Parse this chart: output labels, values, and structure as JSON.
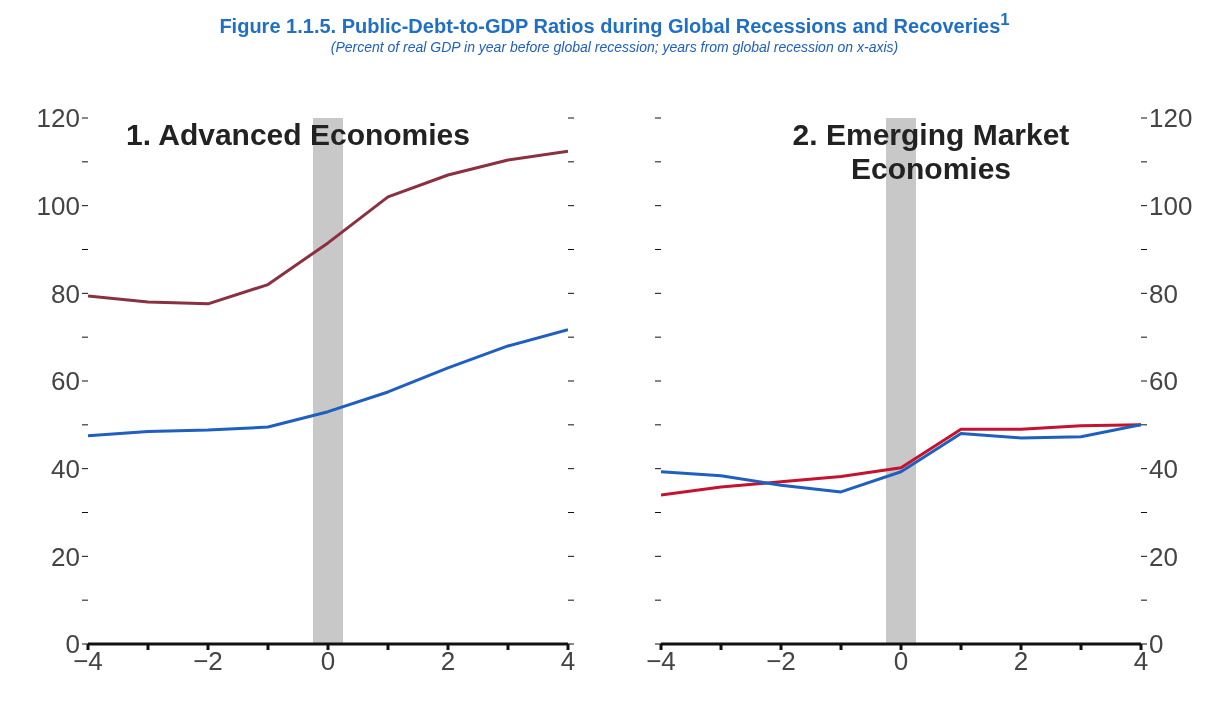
{
  "chart_data": [
    {
      "type": "line",
      "title": "1. Advanced Economies",
      "annotations": [
        "Figure 1.1.5. Public-Debt-to-GDP Ratios during Global Recessions and Recoveries$^{1}$",
        "(Percent of real GDP in year before global recession; years from global recession on x-axis)"
      ],
      "x": [
        -4,
        -3,
        -2,
        -1,
        0,
        1,
        2,
        3,
        4
      ],
      "series": [
        {
          "color": "#8a3040",
          "values": [
            79.4,
            78,
            77.6,
            82,
            91.5,
            102,
            107,
            110.4,
            112.4
          ]
        },
        {
          "color": "#1f5fbf",
          "values": [
            47.5,
            48.5,
            48.8,
            49.5,
            53,
            57.5,
            63,
            68,
            71.7
          ]
        }
      ],
      "xlim": [
        -4,
        4
      ],
      "xticks": [
        {
          "value": -4,
          "label": "−4"
        },
        {
          "value": -3,
          "label": null
        },
        {
          "value": -2,
          "label": "−2"
        },
        {
          "value": -1,
          "label": null
        },
        0,
        {
          "value": 1,
          "label": null
        },
        2,
        {
          "value": 3,
          "label": null
        },
        4
      ],
      "ylim": [
        0,
        120
      ],
      "yticks": [
        0,
        {
          "value": 10,
          "label": null
        },
        20,
        {
          "value": 30,
          "label": null
        },
        40,
        {
          "value": 50,
          "label": null
        },
        60,
        {
          "value": 70,
          "label": null
        },
        80,
        {
          "value": 90,
          "label": null
        },
        100,
        {
          "value": 110,
          "label": null
        },
        120
      ],
      "bands": [
        {
          "axis": "x",
          "from": -0.25,
          "to": 0.25,
          "color": "#c8c8c8"
        }
      ]
    },
    {
      "type": "line",
      "title": "2. Emerging Market Economies",
      "x": [
        -4,
        -3,
        -2,
        -1,
        0,
        1,
        2,
        3,
        4
      ],
      "series": [
        {
          "color": "#c4122f",
          "axis": "y2",
          "values": [
            34,
            35.8,
            37,
            38.2,
            40.2,
            49,
            49,
            49.8,
            50
          ]
        },
        {
          "color": "#1f5fbf",
          "axis": "y2",
          "values": [
            39.3,
            38.4,
            36.2,
            34.7,
            39.3,
            48,
            47,
            47.3,
            50
          ]
        }
      ],
      "xlim": [
        -4,
        4
      ],
      "xticks": [
        {
          "value": -4,
          "label": "−4"
        },
        {
          "value": -3,
          "label": null
        },
        {
          "value": -2,
          "label": "−2"
        },
        {
          "value": -1,
          "label": null
        },
        0,
        {
          "value": 1,
          "label": null
        },
        2,
        {
          "value": 3,
          "label": null
        },
        4
      ],
      "y2lim": [
        0,
        120
      ],
      "y2ticks": [
        0,
        {
          "value": 10,
          "label": null
        },
        20,
        {
          "value": 30,
          "label": null
        },
        40,
        {
          "value": 50,
          "label": null
        },
        60,
        {
          "value": 70,
          "label": null
        },
        80,
        {
          "value": 90,
          "label": null
        },
        100,
        {
          "value": 110,
          "label": null
        },
        120
      ],
      "bands": [
        {
          "axis": "x",
          "from": -0.25,
          "to": 0.25,
          "color": "#c8c8c8"
        }
      ]
    }
  ]
}
